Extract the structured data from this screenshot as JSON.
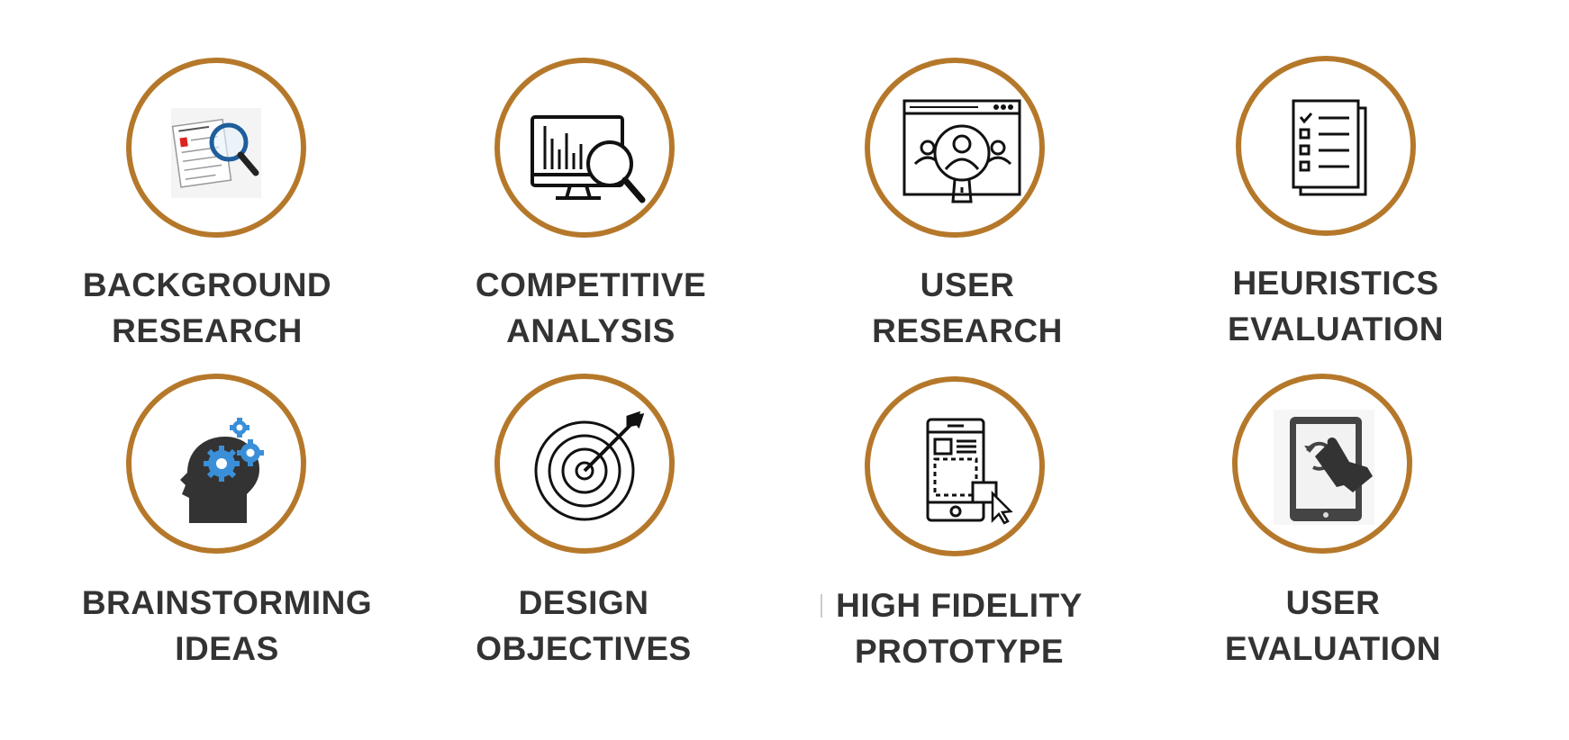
{
  "accent_color": "#b5782a",
  "text_color": "#333333",
  "steps": [
    {
      "icon": "magnifier-document-icon",
      "line1": "BACKGROUND",
      "line2": "RESEARCH"
    },
    {
      "icon": "monitor-analysis-icon",
      "line1": "COMPETITIVE",
      "line2": "ANALYSIS"
    },
    {
      "icon": "user-search-icon",
      "line1": "USER",
      "line2": "RESEARCH"
    },
    {
      "icon": "checklist-icon",
      "line1": "HEURISTICS",
      "line2": "EVALUATION"
    },
    {
      "icon": "head-gears-icon",
      "line1": "BRAINSTORMING",
      "line2": "IDEAS"
    },
    {
      "icon": "target-arrow-icon",
      "line1": "DESIGN",
      "line2": "OBJECTIVES"
    },
    {
      "icon": "mobile-prototype-icon",
      "line1": "HIGH FIDELITY",
      "line2": "PROTOTYPE"
    },
    {
      "icon": "tablet-touch-icon",
      "line1": "USER",
      "line2": "EVALUATION"
    }
  ]
}
